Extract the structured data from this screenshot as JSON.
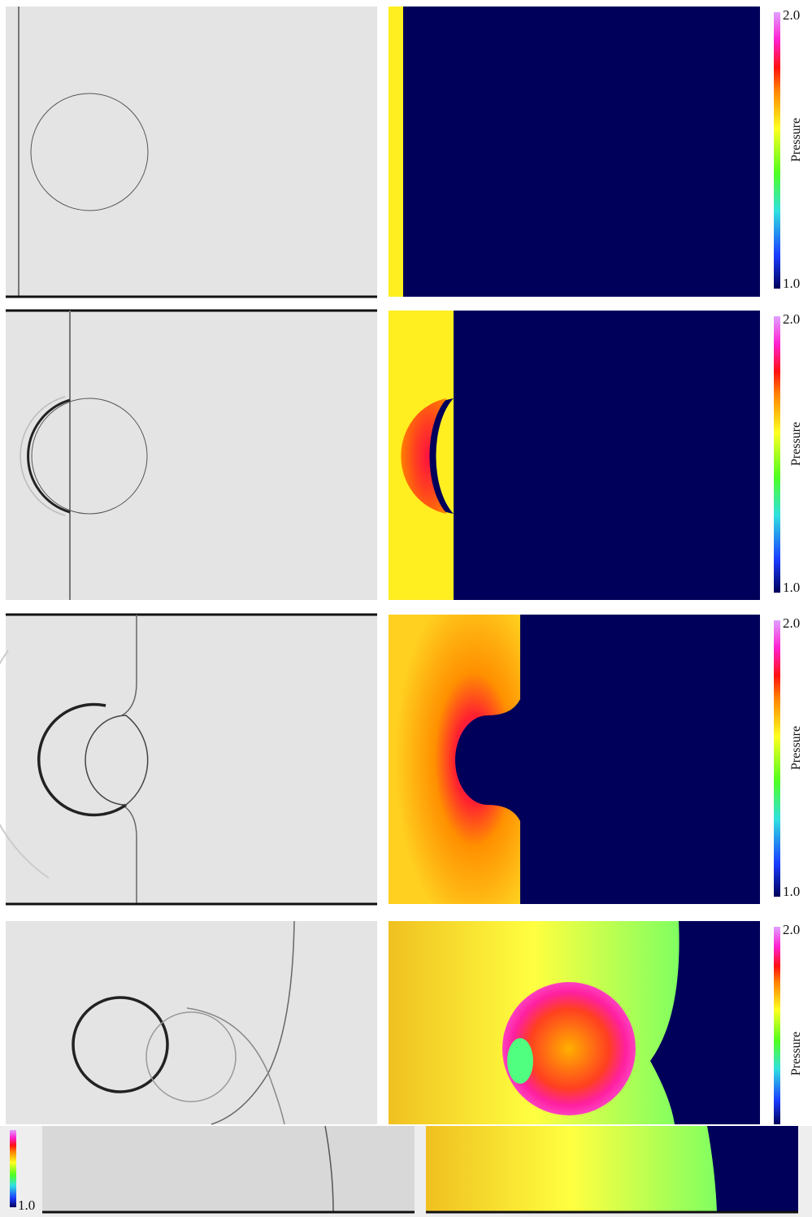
{
  "panels": [
    {
      "colorbar": {
        "max": "2.0",
        "label": "Pressure",
        "min": "1.0"
      }
    },
    {
      "colorbar": {
        "max": "2.0",
        "label": "Pressure",
        "min": "1.0"
      }
    },
    {
      "colorbar": {
        "max": "2.0",
        "label": "Pressure",
        "min": "1.0"
      }
    },
    {
      "colorbar": {
        "max": "2.0",
        "label": "Pressure"
      }
    },
    {
      "colorbar": {
        "min": "1.0"
      }
    }
  ]
}
